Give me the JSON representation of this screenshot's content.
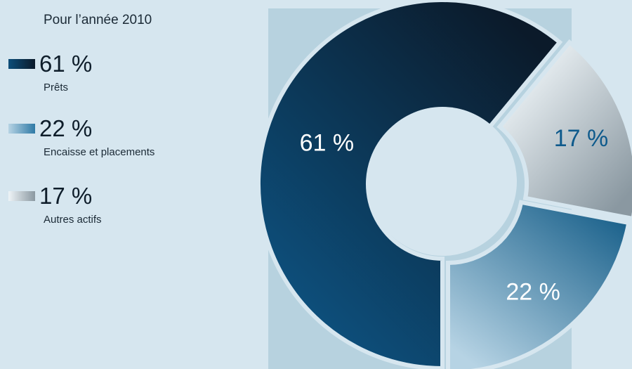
{
  "legend": {
    "title": "Pour l’année 2010",
    "items": [
      {
        "pct": "61 %",
        "label": "Prêts"
      },
      {
        "pct": "22 %",
        "label": "Encaisse et placements"
      },
      {
        "pct": "17 %",
        "label": "Autres actifs"
      }
    ]
  },
  "chart_data": {
    "type": "pie",
    "title": "Pour l’année 2010",
    "categories": [
      "Prêts",
      "Encaisse et placements",
      "Autres actifs"
    ],
    "values": [
      61,
      22,
      17
    ],
    "data_labels": [
      "61 %",
      "22 %",
      "17 %"
    ],
    "legend_position": "left",
    "colors": {
      "panel_bg": "#b7d2df",
      "page_bg": "#d6e6ef",
      "prets_dark": "#0b1a2a",
      "prets_light": "#0d4e7a",
      "encaisse_dark": "#0e5884",
      "encaisse_light": "#b6d3e4",
      "autres_dark": "#8a98a1",
      "autres_light": "#eef4f7",
      "label_light": "#ffffff",
      "label_dark": "#0e5a8c"
    }
  }
}
